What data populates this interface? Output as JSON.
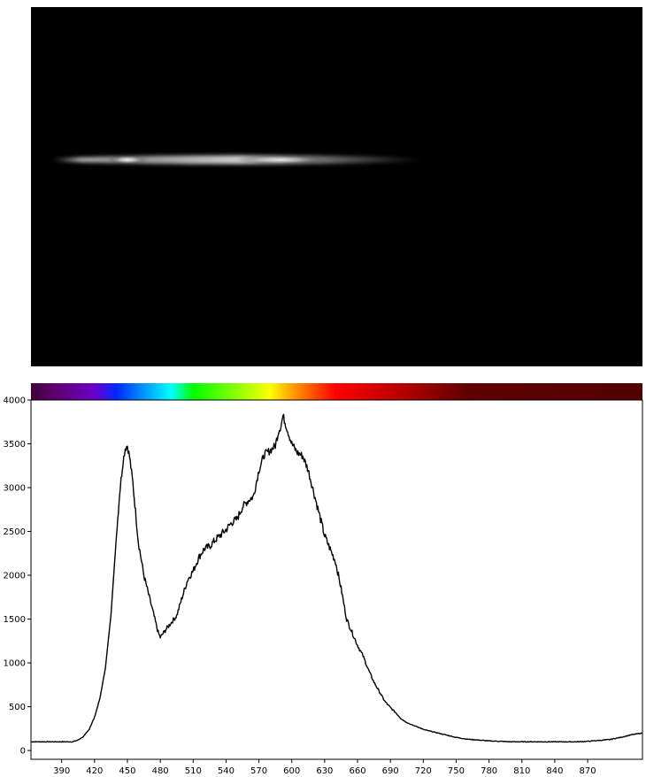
{
  "chart_data": [
    {
      "type": "image",
      "description_visible": "",
      "colors": {
        "background": "#000000",
        "streak": "#ffffff"
      },
      "streak_wavelength_range": [
        380,
        720
      ],
      "streak_peaks": [
        {
          "x": 450,
          "brightness": 0.95
        },
        {
          "x": 590,
          "brightness": 0.9
        }
      ]
    },
    {
      "type": "colorbar",
      "x_range": [
        362,
        920
      ],
      "stops": [
        {
          "x": 362,
          "color": "#3d0038"
        },
        {
          "x": 380,
          "color": "#5c0066"
        },
        {
          "x": 420,
          "color": "#6a00c8"
        },
        {
          "x": 440,
          "color": "#0028ff"
        },
        {
          "x": 460,
          "color": "#0080ff"
        },
        {
          "x": 490,
          "color": "#00ffff"
        },
        {
          "x": 510,
          "color": "#00ff00"
        },
        {
          "x": 560,
          "color": "#b0ff00"
        },
        {
          "x": 580,
          "color": "#ffff00"
        },
        {
          "x": 600,
          "color": "#ffa000"
        },
        {
          "x": 640,
          "color": "#ff0000"
        },
        {
          "x": 700,
          "color": "#b80000"
        },
        {
          "x": 760,
          "color": "#600000"
        },
        {
          "x": 920,
          "color": "#520000"
        }
      ]
    },
    {
      "type": "line",
      "title": "",
      "xlabel": "",
      "ylabel": "",
      "xlim": [
        362,
        920
      ],
      "ylim": [
        -100,
        4000
      ],
      "grid": false,
      "x_ticks": [
        390,
        420,
        450,
        480,
        510,
        540,
        570,
        600,
        630,
        660,
        690,
        720,
        750,
        780,
        810,
        840,
        870
      ],
      "y_ticks": [
        0,
        500,
        1000,
        1500,
        2000,
        2500,
        3000,
        3500,
        4000
      ],
      "line_color": "#000000",
      "series": [
        {
          "x": [
            362,
            380,
            400,
            405,
            410,
            415,
            420,
            425,
            430,
            435,
            440,
            443,
            446,
            448,
            450,
            452,
            455,
            458,
            460,
            465,
            470,
            475,
            478,
            480,
            485,
            490,
            495,
            500,
            505,
            510,
            515,
            520,
            525,
            530,
            535,
            540,
            545,
            550,
            555,
            560,
            565,
            570,
            575,
            580,
            585,
            588,
            590,
            592,
            595,
            600,
            605,
            610,
            615,
            620,
            625,
            630,
            635,
            640,
            645,
            650,
            655,
            660,
            665,
            670,
            675,
            680,
            685,
            690,
            695,
            700,
            705,
            710,
            715,
            720,
            730,
            740,
            750,
            760,
            780,
            800,
            820,
            840,
            860,
            870,
            880,
            890,
            900,
            910,
            920
          ],
          "y": [
            100,
            100,
            100,
            120,
            160,
            240,
            380,
            600,
            950,
            1550,
            2450,
            2950,
            3300,
            3450,
            3480,
            3350,
            3050,
            2650,
            2380,
            2000,
            1750,
            1500,
            1350,
            1290,
            1380,
            1460,
            1540,
            1750,
            1950,
            2050,
            2200,
            2300,
            2330,
            2400,
            2460,
            2520,
            2600,
            2640,
            2780,
            2850,
            2900,
            3200,
            3380,
            3420,
            3480,
            3650,
            3700,
            3820,
            3700,
            3500,
            3400,
            3360,
            3200,
            2950,
            2700,
            2450,
            2300,
            2150,
            1850,
            1500,
            1350,
            1200,
            1080,
            920,
            780,
            670,
            560,
            490,
            430,
            360,
            320,
            290,
            270,
            240,
            210,
            180,
            150,
            130,
            110,
            100,
            100,
            100,
            100,
            105,
            115,
            125,
            150,
            180,
            200
          ]
        }
      ]
    }
  ]
}
